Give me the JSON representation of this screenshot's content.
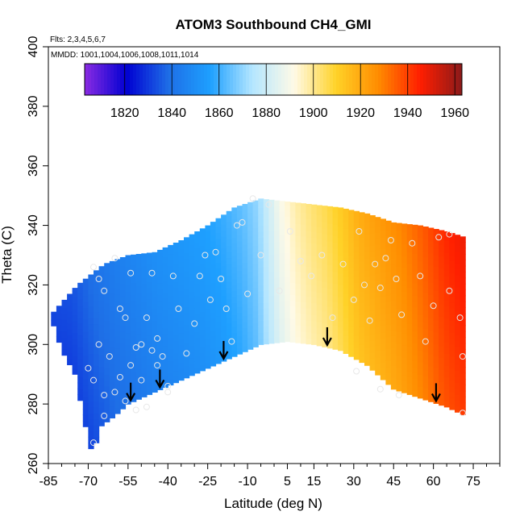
{
  "chart_data": {
    "type": "heatmap",
    "title": "ATOM3 Southbound CH4_GMI",
    "flights_note": "Flts: 2,3,4,5,6,7",
    "dates_note": "MMDD: 1001,1004,1006,1008,1011,1014",
    "xlabel": "Latitude (deg N)",
    "ylabel": "Theta (C)",
    "xlim": [
      -85,
      85
    ],
    "ylim": [
      260,
      400
    ],
    "x_ticks": [
      -85,
      -70,
      -55,
      -40,
      -25,
      -10,
      5,
      15,
      30,
      45,
      60,
      75
    ],
    "x_tick_labels": [
      "-85",
      "-70",
      "-55",
      "-40",
      "-25",
      "-10",
      "5",
      "15",
      "30",
      "45",
      "60",
      "75"
    ],
    "y_ticks": [
      260,
      280,
      300,
      320,
      340,
      360,
      380,
      400
    ],
    "y_tick_labels": [
      "260",
      "280",
      "300",
      "320",
      "340",
      "360",
      "380",
      "400"
    ],
    "colorbar": {
      "min": 1803,
      "max": 1963,
      "ticks": [
        1820,
        1840,
        1860,
        1880,
        1900,
        1920,
        1940,
        1960
      ],
      "tick_labels": [
        "1820",
        "1840",
        "1860",
        "1880",
        "1900",
        "1920",
        "1940",
        "1960"
      ],
      "colors": [
        "#8a2be2",
        "#0000d2",
        "#1e6ee6",
        "#1ea0ff",
        "#b4e6ff",
        "#fffae6",
        "#ffd228",
        "#ff8c00",
        "#ff1e00",
        "#8b1a1a"
      ]
    },
    "domain_upper": [
      [
        -84,
        310
      ],
      [
        -74,
        320
      ],
      [
        -64,
        327
      ],
      [
        -55,
        330
      ],
      [
        -45,
        331
      ],
      [
        -35,
        335
      ],
      [
        -25,
        340
      ],
      [
        -15,
        346
      ],
      [
        -5,
        349
      ],
      [
        5,
        348
      ],
      [
        15,
        347
      ],
      [
        25,
        346
      ],
      [
        35,
        344
      ],
      [
        45,
        341
      ],
      [
        55,
        340
      ],
      [
        65,
        338
      ],
      [
        72,
        336
      ]
    ],
    "domain_lower": [
      [
        -84,
        309
      ],
      [
        -80,
        298
      ],
      [
        -75,
        290
      ],
      [
        -70,
        268
      ],
      [
        -68,
        262
      ],
      [
        -66,
        272
      ],
      [
        -60,
        276
      ],
      [
        -55,
        280
      ],
      [
        -45,
        284
      ],
      [
        -35,
        288
      ],
      [
        -25,
        292
      ],
      [
        -15,
        296
      ],
      [
        -5,
        300
      ],
      [
        5,
        301
      ],
      [
        15,
        300
      ],
      [
        25,
        298
      ],
      [
        35,
        293
      ],
      [
        45,
        285
      ],
      [
        55,
        282
      ],
      [
        65,
        279
      ],
      [
        72,
        276
      ]
    ],
    "field_profile": [
      [
        -84,
        1832
      ],
      [
        -76,
        1833
      ],
      [
        -68,
        1838
      ],
      [
        -60,
        1842
      ],
      [
        -52,
        1845
      ],
      [
        -44,
        1848
      ],
      [
        -36,
        1850
      ],
      [
        -28,
        1852
      ],
      [
        -20,
        1855
      ],
      [
        -12,
        1860
      ],
      [
        -6,
        1866
      ],
      [
        -2,
        1876
      ],
      [
        2,
        1885
      ],
      [
        8,
        1893
      ],
      [
        14,
        1898
      ],
      [
        20,
        1902
      ],
      [
        26,
        1908
      ],
      [
        32,
        1915
      ],
      [
        40,
        1920
      ],
      [
        48,
        1925
      ],
      [
        56,
        1932
      ],
      [
        64,
        1940
      ],
      [
        72,
        1945
      ]
    ],
    "obs_points": [
      [
        -68,
        326
      ],
      [
        -66,
        322
      ],
      [
        -64,
        318
      ],
      [
        -60,
        329
      ],
      [
        -58,
        312
      ],
      [
        -56,
        309
      ],
      [
        -54,
        324
      ],
      [
        -50,
        300
      ],
      [
        -48,
        309
      ],
      [
        -46,
        324
      ],
      [
        -44,
        302
      ],
      [
        -42,
        296
      ],
      [
        -40,
        286
      ],
      [
        -38,
        323
      ],
      [
        -36,
        312
      ],
      [
        -33,
        297
      ],
      [
        -30,
        307
      ],
      [
        -28,
        323
      ],
      [
        -26,
        330
      ],
      [
        -24,
        315
      ],
      [
        -22,
        331
      ],
      [
        -20,
        322
      ],
      [
        -18,
        312
      ],
      [
        -16,
        301
      ],
      [
        -14,
        340
      ],
      [
        -12,
        341
      ],
      [
        -10,
        317
      ],
      [
        -8,
        349
      ],
      [
        -5,
        330
      ],
      [
        -2,
        347
      ],
      [
        2,
        318
      ],
      [
        6,
        338
      ],
      [
        10,
        328
      ],
      [
        14,
        323
      ],
      [
        18,
        330
      ],
      [
        22,
        309
      ],
      [
        26,
        327
      ],
      [
        30,
        315
      ],
      [
        32,
        338
      ],
      [
        34,
        320
      ],
      [
        36,
        308
      ],
      [
        38,
        327
      ],
      [
        40,
        319
      ],
      [
        42,
        329
      ],
      [
        44,
        335
      ],
      [
        46,
        322
      ],
      [
        48,
        310
      ],
      [
        52,
        334
      ],
      [
        55,
        323
      ],
      [
        57,
        301
      ],
      [
        60,
        313
      ],
      [
        62,
        336
      ],
      [
        66,
        337
      ],
      [
        66,
        318
      ],
      [
        70,
        309
      ],
      [
        -70,
        292
      ],
      [
        -68,
        288
      ],
      [
        -66,
        300
      ],
      [
        -64,
        276
      ],
      [
        -62,
        296
      ],
      [
        -60,
        284
      ],
      [
        -58,
        289
      ],
      [
        -56,
        281
      ],
      [
        -54,
        293
      ],
      [
        -52,
        299
      ],
      [
        -50,
        288
      ],
      [
        -48,
        279
      ],
      [
        -46,
        298
      ],
      [
        -44,
        293
      ],
      [
        -68,
        267
      ],
      [
        -64,
        283
      ],
      [
        -52,
        278
      ],
      [
        -40,
        284
      ],
      [
        31,
        291
      ],
      [
        40,
        285
      ],
      [
        47,
        283
      ],
      [
        71,
        296
      ],
      [
        71,
        277
      ]
    ],
    "arrows_lat": [
      -54,
      -43,
      -19,
      20,
      61
    ]
  }
}
